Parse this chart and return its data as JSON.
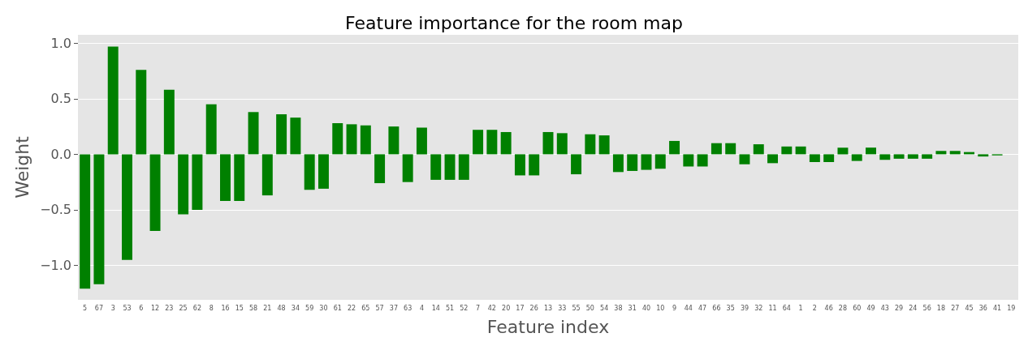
{
  "chart_data": {
    "type": "bar",
    "title": "Feature importance for the room map",
    "xlabel": "Feature index",
    "ylabel": "Weight",
    "categories": [
      "5",
      "67",
      "3",
      "53",
      "6",
      "12",
      "23",
      "25",
      "62",
      "8",
      "16",
      "15",
      "58",
      "21",
      "48",
      "34",
      "59",
      "30",
      "61",
      "22",
      "65",
      "57",
      "37",
      "63",
      "4",
      "14",
      "51",
      "52",
      "7",
      "42",
      "20",
      "17",
      "26",
      "13",
      "33",
      "55",
      "50",
      "54",
      "38",
      "31",
      "40",
      "10",
      "9",
      "44",
      "47",
      "66",
      "35",
      "39",
      "32",
      "11",
      "64",
      "1",
      "2",
      "46",
      "28",
      "60",
      "49",
      "43",
      "29",
      "24",
      "56",
      "18",
      "27",
      "45",
      "36",
      "41",
      "19"
    ],
    "values": [
      -1.21,
      -1.17,
      0.97,
      -0.95,
      0.76,
      -0.69,
      0.58,
      -0.54,
      -0.5,
      0.45,
      -0.42,
      -0.42,
      0.38,
      -0.37,
      0.36,
      0.33,
      -0.32,
      -0.31,
      0.28,
      0.27,
      0.26,
      -0.26,
      0.25,
      -0.25,
      0.24,
      -0.23,
      -0.23,
      -0.23,
      0.22,
      0.22,
      0.2,
      -0.19,
      -0.19,
      0.2,
      0.19,
      -0.18,
      0.18,
      0.17,
      -0.16,
      -0.15,
      -0.14,
      -0.13,
      0.12,
      -0.11,
      -0.11,
      0.1,
      0.1,
      -0.09,
      0.09,
      -0.08,
      0.07,
      0.07,
      -0.07,
      -0.07,
      0.06,
      -0.06,
      0.06,
      -0.05,
      -0.04,
      -0.04,
      -0.04,
      0.03,
      0.03,
      0.02,
      -0.02,
      -0.01,
      0.0
    ],
    "color": "#008000",
    "ylim": [
      -1.31,
      1.075
    ],
    "yticks": [
      {
        "value": -1,
        "label": "−1.0"
      },
      {
        "value": -0.5,
        "label": "−0.5"
      },
      {
        "value": 0,
        "label": "0.0"
      },
      {
        "value": 0.5,
        "label": "0.5"
      },
      {
        "value": 1,
        "label": "1.0"
      }
    ],
    "grid": "y"
  }
}
